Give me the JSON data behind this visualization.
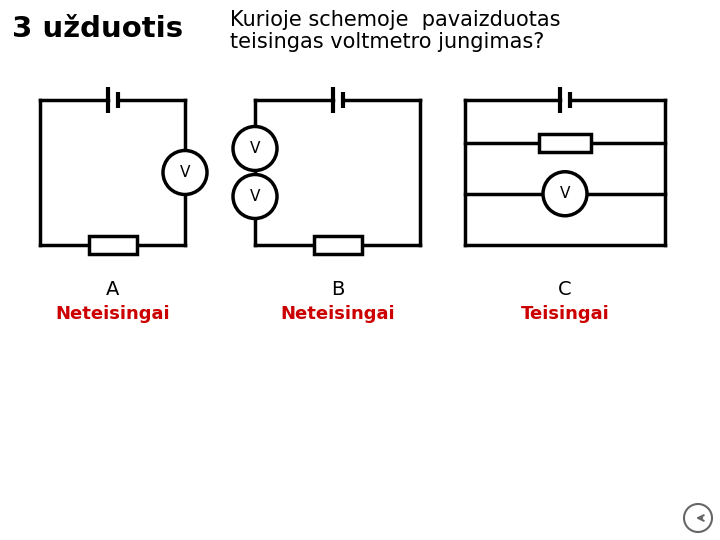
{
  "title_left": "3 užduotis",
  "title_right_line1": "Kurioje schemoje  pavaizduotas",
  "title_right_line2": "teisingas voltmetro jungimas?",
  "label_A": "A",
  "label_B": "B",
  "label_C": "C",
  "answer_A": "Neteisingai",
  "answer_B": "Neteisingai",
  "answer_C": "Teisingai",
  "answer_color_wrong": "#cc0000",
  "answer_color_right": "#cc0000",
  "bg_color": "#ffffff",
  "line_color": "#000000",
  "line_width": 2.5,
  "back_arrow_color": "#666666"
}
